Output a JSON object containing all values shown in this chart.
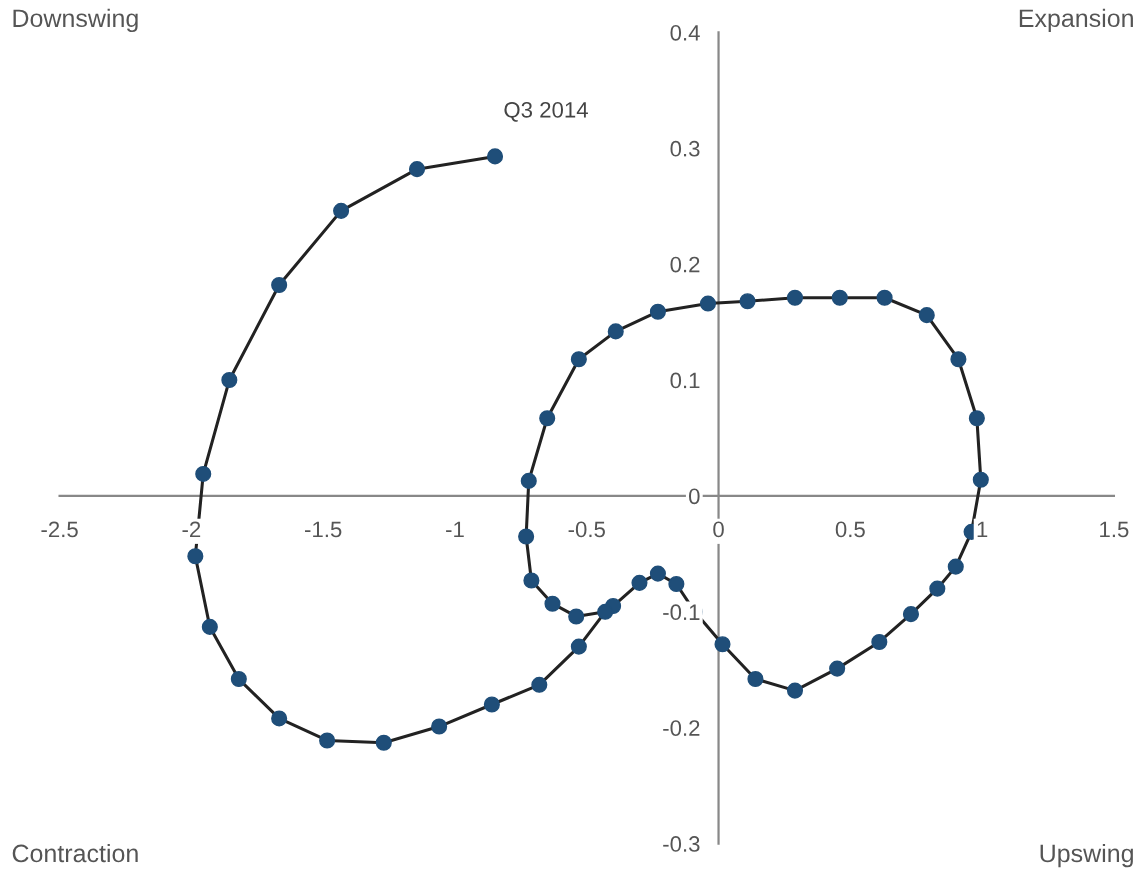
{
  "chart_data": {
    "type": "line",
    "marker": "circle",
    "line_style": "solid",
    "grid": false,
    "legend": false,
    "x": [
      -0.4,
      -0.3,
      -0.23,
      -0.16,
      -0.09,
      0.015,
      0.14,
      0.29,
      0.45,
      0.61,
      0.73,
      0.83,
      0.9,
      0.96,
      0.995,
      0.98,
      0.91,
      0.79,
      0.63,
      0.46,
      0.29,
      0.11,
      -0.04,
      -0.23,
      -0.39,
      -0.53,
      -0.65,
      -0.72,
      -0.73,
      -0.71,
      -0.63,
      -0.54,
      -0.43,
      -0.53,
      -0.68,
      -0.86,
      -1.06,
      -1.27,
      -1.485,
      -1.667,
      -1.82,
      -1.93,
      -1.985,
      -1.955,
      -1.856,
      -1.667,
      -1.432,
      -1.144,
      -0.848
    ],
    "series": [
      {
        "color": "#1f4e79",
        "values": [
          -0.095,
          -0.075,
          -0.067,
          -0.076,
          -0.1,
          -0.128,
          -0.158,
          -0.168,
          -0.149,
          -0.126,
          -0.102,
          -0.08,
          -0.061,
          -0.031,
          0.014,
          0.067,
          0.118,
          0.156,
          0.171,
          0.171,
          0.171,
          0.168,
          0.166,
          0.159,
          0.142,
          0.118,
          0.067,
          0.013,
          -0.035,
          -0.073,
          -0.093,
          -0.104,
          -0.1,
          -0.13,
          -0.163,
          -0.18,
          -0.199,
          -0.213,
          -0.211,
          -0.192,
          -0.158,
          -0.113,
          -0.052,
          0.019,
          0.1,
          0.182,
          0.246,
          0.282,
          0.293
        ]
      }
    ],
    "xlim": [
      -2.5,
      1.5
    ],
    "xticks": [
      -2.5,
      -2,
      -1.5,
      -1,
      -0.5,
      0,
      0.5,
      1,
      1.5
    ],
    "ylim": [
      -0.3,
      0.4
    ],
    "yticks": [
      -0.3,
      -0.2,
      -0.1,
      0,
      0.1,
      0.2,
      0.3,
      0.4
    ],
    "annotations": [
      "Downswing",
      "Expansion",
      "Contraction",
      "Upswing",
      {
        "text": "Q3 2014",
        "x": -0.848,
        "y": 0.293
      }
    ]
  }
}
